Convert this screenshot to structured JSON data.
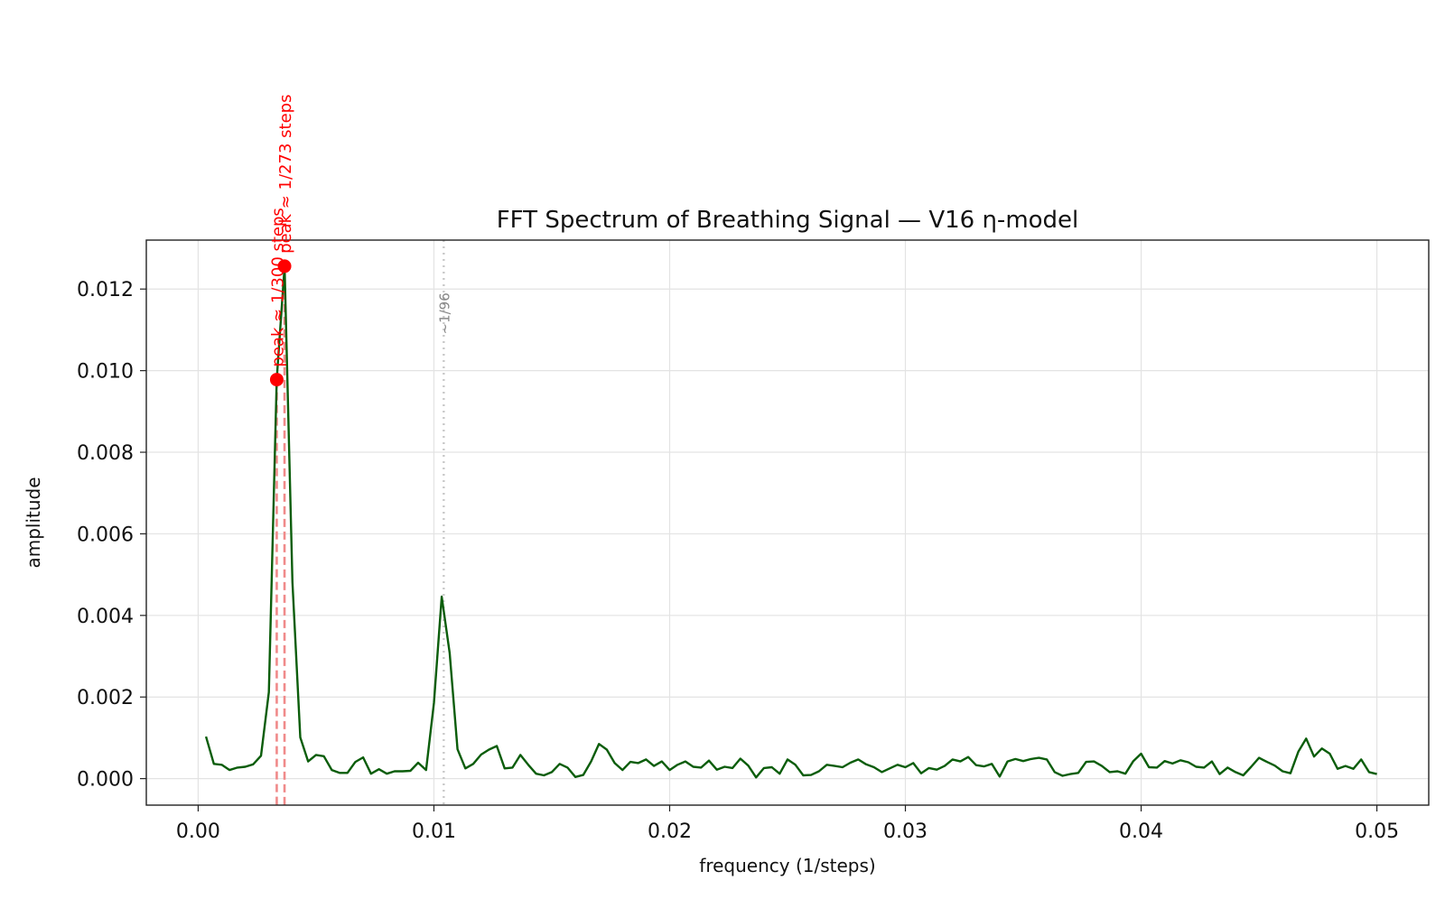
{
  "chart_data": {
    "type": "line",
    "title": "FFT Spectrum of Breathing Signal — V16 η-model",
    "xlabel": "frequency (1/steps)",
    "ylabel": "amplitude",
    "xlim": [
      -0.0022,
      0.0522
    ],
    "ylim": [
      -0.00065,
      0.0132
    ],
    "xticks": [
      0.0,
      0.01,
      0.02,
      0.03,
      0.04,
      0.05
    ],
    "xtick_labels": [
      "0.00",
      "0.01",
      "0.02",
      "0.03",
      "0.04",
      "0.05"
    ],
    "yticks": [
      0.0,
      0.002,
      0.004,
      0.006,
      0.008,
      0.01,
      0.012
    ],
    "ytick_labels": [
      "0.000",
      "0.002",
      "0.004",
      "0.006",
      "0.008",
      "0.010",
      "0.012"
    ],
    "grid": true,
    "line_color": "#0b5d0b",
    "peak_color": "#ff0000",
    "peak_line_color": "#f08a8a",
    "ref_line_color": "#c8c8c8",
    "ref_label_color": "#888888",
    "series": [
      {
        "name": "spectrum",
        "x": [
          0.000333,
          0.000667,
          0.001,
          0.001333,
          0.001667,
          0.002,
          0.002333,
          0.002667,
          0.003,
          0.003333,
          0.003667,
          0.004,
          0.004333,
          0.004667,
          0.005,
          0.005333,
          0.005667,
          0.006,
          0.006333,
          0.006667,
          0.007,
          0.007333,
          0.007667,
          0.008,
          0.008333,
          0.008667,
          0.009,
          0.009333,
          0.009667,
          0.01,
          0.010333,
          0.010667,
          0.011,
          0.011333,
          0.011667,
          0.012,
          0.012333,
          0.012667,
          0.013,
          0.013333,
          0.013667,
          0.014,
          0.014333,
          0.014667,
          0.015,
          0.015333,
          0.015667,
          0.016,
          0.016333,
          0.016667,
          0.017,
          0.017333,
          0.017667,
          0.018,
          0.018333,
          0.018667,
          0.019,
          0.019333,
          0.019667,
          0.02,
          0.020333,
          0.020667,
          0.021,
          0.021333,
          0.021667,
          0.022,
          0.022333,
          0.022667,
          0.023,
          0.023333,
          0.023667,
          0.024,
          0.024333,
          0.024667,
          0.025,
          0.025333,
          0.025667,
          0.026,
          0.026333,
          0.026667,
          0.027,
          0.027333,
          0.027667,
          0.028,
          0.028333,
          0.028667,
          0.029,
          0.029333,
          0.029667,
          0.03,
          0.030333,
          0.030667,
          0.031,
          0.031333,
          0.031667,
          0.032,
          0.032333,
          0.032667,
          0.033,
          0.033333,
          0.033667,
          0.034,
          0.034333,
          0.034667,
          0.035,
          0.035333,
          0.035667,
          0.036,
          0.036333,
          0.036667,
          0.037,
          0.037333,
          0.037667,
          0.038,
          0.038333,
          0.038667,
          0.039,
          0.039333,
          0.039667,
          0.04,
          0.040333,
          0.040667,
          0.041,
          0.041333,
          0.041667,
          0.042,
          0.042333,
          0.042667,
          0.043,
          0.043333,
          0.043667,
          0.044,
          0.044333,
          0.044667,
          0.045,
          0.045333,
          0.045667,
          0.046,
          0.046333,
          0.046667,
          0.047,
          0.047333,
          0.047667,
          0.048,
          0.048333,
          0.048667,
          0.049,
          0.049333,
          0.049667,
          0.05
        ],
        "y": [
          0.00103,
          0.00036,
          0.00034,
          0.00021,
          0.00027,
          0.00029,
          0.00035,
          0.00056,
          0.00212,
          0.00978,
          0.01256,
          0.00482,
          0.00101,
          0.00042,
          0.00058,
          0.00055,
          0.00021,
          0.00014,
          0.00014,
          0.00041,
          0.00052,
          0.00012,
          0.00023,
          0.00012,
          0.00018,
          0.00018,
          0.00019,
          0.00039,
          0.00021,
          0.00186,
          0.00446,
          0.00308,
          0.00072,
          0.00025,
          0.00036,
          0.00059,
          0.00071,
          0.0008,
          0.00025,
          0.00027,
          0.00058,
          0.00034,
          0.00012,
          8e-05,
          0.00016,
          0.00036,
          0.00027,
          4e-05,
          9e-05,
          0.00042,
          0.00085,
          0.00071,
          0.00038,
          0.00021,
          0.00041,
          0.00038,
          0.00047,
          0.00031,
          0.00042,
          0.00021,
          0.00034,
          0.00042,
          0.00029,
          0.00027,
          0.00044,
          0.00022,
          0.00029,
          0.00026,
          0.00049,
          0.00032,
          3e-05,
          0.00026,
          0.00028,
          0.00012,
          0.00047,
          0.00034,
          8e-05,
          9e-05,
          0.00018,
          0.00034,
          0.00031,
          0.00028,
          0.00039,
          0.00047,
          0.00035,
          0.00028,
          0.00016,
          0.00025,
          0.00034,
          0.00028,
          0.00038,
          0.00013,
          0.00026,
          0.00022,
          0.00031,
          0.00047,
          0.00042,
          0.00053,
          0.00033,
          0.0003,
          0.00036,
          5e-05,
          0.00042,
          0.00048,
          0.00043,
          0.00048,
          0.00051,
          0.00047,
          0.00016,
          7e-05,
          0.00011,
          0.00014,
          0.00041,
          0.00042,
          0.00031,
          0.00016,
          0.00018,
          0.00012,
          0.00043,
          0.00061,
          0.00028,
          0.00027,
          0.00043,
          0.00037,
          0.00045,
          0.0004,
          0.00029,
          0.00027,
          0.00042,
          0.00011,
          0.00027,
          0.00016,
          8e-05,
          0.00029,
          0.00051,
          0.00041,
          0.00032,
          0.00018,
          0.00013,
          0.00066,
          0.00098,
          0.00054,
          0.00074,
          0.00061,
          0.00024,
          0.00031,
          0.00024,
          0.00047,
          0.00016,
          0.00011
        ]
      }
    ],
    "peaks": [
      {
        "x": 0.003333,
        "y": 0.00978,
        "label": "peak ≈ 1/300 steps"
      },
      {
        "x": 0.003663,
        "y": 0.01256,
        "label": "peak ≈ 1/273 steps"
      }
    ],
    "reference_lines": [
      {
        "x": 0.010417,
        "label": "~1/96"
      }
    ]
  }
}
